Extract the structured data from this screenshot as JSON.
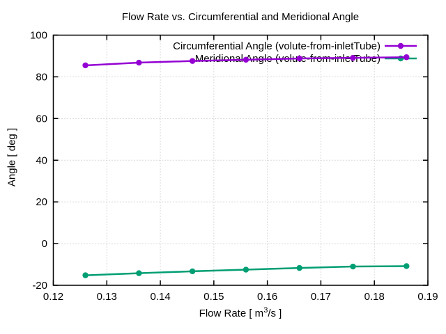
{
  "chart_data": {
    "type": "line",
    "title": "Flow Rate vs. Circumferential and Meridional Angle",
    "xlabel": "Flow Rate [ m3/s ]",
    "xlabel_parts": {
      "pre": "Flow Rate [ m",
      "sup": "3",
      "post": "/s ]"
    },
    "ylabel": "Angle [ deg ]",
    "xlim": [
      0.12,
      0.19
    ],
    "ylim": [
      -20,
      100
    ],
    "x_ticks": [
      0.12,
      0.13,
      0.14,
      0.15,
      0.16,
      0.17,
      0.18,
      0.19
    ],
    "x_tick_labels": [
      "0.12",
      "0.13",
      "0.14",
      "0.15",
      "0.16",
      "0.17",
      "0.18",
      "0.19"
    ],
    "y_ticks": [
      -20,
      0,
      20,
      40,
      60,
      80,
      100
    ],
    "y_tick_labels": [
      "-20",
      "0",
      "20",
      "40",
      "60",
      "80",
      "100"
    ],
    "grid": true,
    "legend_position": "top right inside",
    "x": [
      0.126,
      0.136,
      0.146,
      0.156,
      0.166,
      0.176,
      0.186
    ],
    "series": [
      {
        "name": "Circumferential Angle (volute-from-inletTube)",
        "color": "#9400d3",
        "marker": "filled-circle",
        "values": [
          85.5,
          86.8,
          87.6,
          88.2,
          88.8,
          89.1,
          89.4
        ]
      },
      {
        "name": "Meridional Angle (volute-from-inletTube)",
        "color": "#009e73",
        "marker": "filled-circle",
        "values": [
          -15.2,
          -14.2,
          -13.3,
          -12.5,
          -11.7,
          -11.0,
          -10.8
        ]
      }
    ],
    "colors": {
      "background": "#ffffff",
      "border": "#000000",
      "grid": "#b4b4b4"
    }
  }
}
